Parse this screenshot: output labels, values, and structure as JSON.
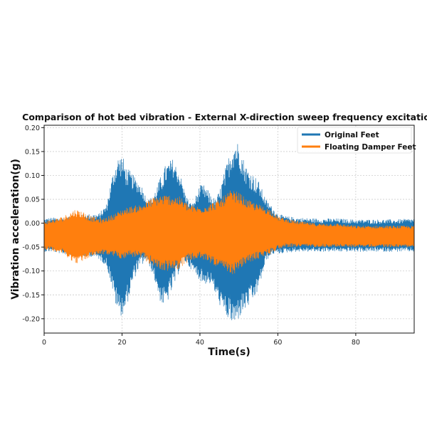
{
  "chart_data": {
    "type": "line",
    "title": "Comparison of hot bed vibration - External X-direction sweep frequency excitation",
    "xlabel": "Time(s)",
    "ylabel": "Vibration acceleration(g)",
    "xlim": [
      0,
      95
    ],
    "ylim": [
      -0.23,
      0.205
    ],
    "xticks": [
      0,
      20,
      40,
      60,
      80
    ],
    "yticks": [
      -0.2,
      -0.15,
      -0.1,
      -0.05,
      0.0,
      0.05,
      0.1,
      0.15,
      0.2
    ],
    "ytick_labels": [
      "-0.20",
      "-0.15",
      "-0.10",
      "-0.05",
      "0.00",
      "0.05",
      "0.10",
      "0.15",
      "0.20"
    ],
    "grid": true,
    "legend_position": "top-right",
    "series": [
      {
        "name": "Original Feet",
        "color": "#1f77b4",
        "envelope": {
          "t": [
            0,
            2,
            5,
            8,
            10,
            12,
            14,
            16,
            17,
            18,
            19,
            20,
            21,
            22,
            23,
            24,
            25,
            26,
            27,
            28,
            29,
            30,
            31,
            32,
            33,
            34,
            35,
            36,
            37,
            38,
            39,
            40,
            41,
            42,
            43,
            44,
            45,
            46,
            47,
            48,
            49,
            50,
            51,
            52,
            53,
            54,
            55,
            56,
            57,
            58,
            59,
            60,
            62,
            65,
            70,
            75,
            80,
            85,
            90,
            95
          ],
          "upper": [
            0.01,
            0.012,
            0.012,
            0.015,
            0.018,
            0.02,
            0.02,
            0.04,
            0.08,
            0.12,
            0.14,
            0.145,
            0.12,
            0.11,
            0.1,
            0.09,
            0.08,
            0.06,
            0.05,
            0.06,
            0.08,
            0.1,
            0.12,
            0.13,
            0.135,
            0.12,
            0.1,
            0.07,
            0.05,
            0.04,
            0.06,
            0.08,
            0.08,
            0.07,
            0.06,
            0.05,
            0.07,
            0.1,
            0.13,
            0.16,
            0.175,
            0.17,
            0.14,
            0.12,
            0.11,
            0.1,
            0.09,
            0.07,
            0.05,
            0.04,
            0.03,
            0.02,
            0.015,
            0.012,
            0.01,
            0.01,
            0.008,
            0.008,
            0.008,
            0.01
          ],
          "lower": [
            -0.06,
            -0.06,
            -0.065,
            -0.07,
            -0.07,
            -0.07,
            -0.075,
            -0.09,
            -0.12,
            -0.16,
            -0.19,
            -0.195,
            -0.18,
            -0.15,
            -0.12,
            -0.1,
            -0.09,
            -0.08,
            -0.09,
            -0.11,
            -0.14,
            -0.17,
            -0.175,
            -0.16,
            -0.14,
            -0.12,
            -0.09,
            -0.08,
            -0.09,
            -0.1,
            -0.11,
            -0.12,
            -0.13,
            -0.125,
            -0.13,
            -0.15,
            -0.17,
            -0.19,
            -0.2,
            -0.21,
            -0.22,
            -0.2,
            -0.19,
            -0.18,
            -0.17,
            -0.16,
            -0.14,
            -0.11,
            -0.08,
            -0.07,
            -0.065,
            -0.065,
            -0.062,
            -0.06,
            -0.06,
            -0.06,
            -0.06,
            -0.06,
            -0.06,
            -0.06
          ]
        }
      },
      {
        "name": "Floating Damper Feet",
        "color": "#ff7f0e",
        "envelope": {
          "t": [
            0,
            3,
            5,
            8,
            10,
            12,
            15,
            18,
            20,
            22,
            25,
            28,
            30,
            33,
            35,
            37,
            40,
            42,
            45,
            48,
            50,
            52,
            55,
            58,
            60,
            62,
            65,
            70,
            75,
            80,
            85,
            90,
            95
          ],
          "upper": [
            0.005,
            0.01,
            0.015,
            0.03,
            0.025,
            0.015,
            0.01,
            0.02,
            0.03,
            0.035,
            0.04,
            0.055,
            0.06,
            0.06,
            0.055,
            0.04,
            0.035,
            0.04,
            0.05,
            0.07,
            0.065,
            0.05,
            0.04,
            0.03,
            0.015,
            0.01,
            0.005,
            0.0,
            0.0,
            -0.005,
            -0.005,
            -0.005,
            -0.005
          ],
          "lower": [
            -0.055,
            -0.06,
            -0.065,
            -0.085,
            -0.08,
            -0.07,
            -0.065,
            -0.07,
            -0.075,
            -0.07,
            -0.075,
            -0.09,
            -0.1,
            -0.1,
            -0.095,
            -0.08,
            -0.075,
            -0.08,
            -0.095,
            -0.11,
            -0.1,
            -0.085,
            -0.075,
            -0.065,
            -0.055,
            -0.05,
            -0.05,
            -0.05,
            -0.05,
            -0.05,
            -0.05,
            -0.05,
            -0.05
          ]
        }
      }
    ]
  }
}
